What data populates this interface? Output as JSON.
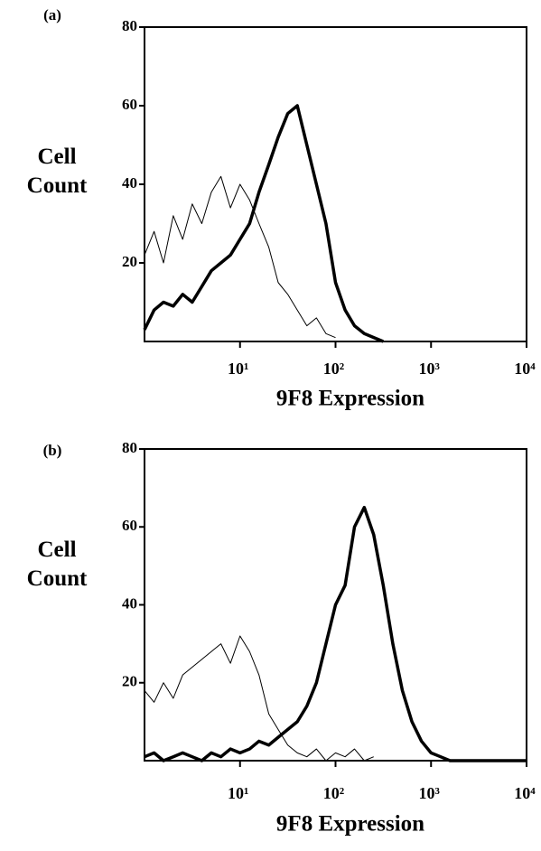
{
  "chart_data": [
    {
      "type": "line",
      "title": "(a)",
      "ylabel": "Cell Count",
      "xlabel": "9F8 Expression",
      "xscale": "log",
      "xlim": [
        1,
        10000
      ],
      "ylim": [
        0,
        80
      ],
      "xticks": [
        {
          "value": 10,
          "label": "10¹"
        },
        {
          "value": 100,
          "label": "10²"
        },
        {
          "value": 1000,
          "label": "10³"
        },
        {
          "value": 10000,
          "label": "10⁴"
        }
      ],
      "yticks": [
        20,
        40,
        60,
        80
      ],
      "x": [
        1,
        1.26,
        1.58,
        2,
        2.51,
        3.16,
        3.98,
        5.01,
        6.31,
        7.94,
        10,
        12.6,
        15.8,
        20,
        25.1,
        31.6,
        39.8,
        50.1,
        63.1,
        79.4,
        100,
        126,
        158,
        200,
        251,
        316,
        398,
        501,
        631,
        794,
        1000,
        1260,
        1580,
        2000,
        2510,
        3160,
        3980,
        5010,
        6310,
        7940,
        10000
      ],
      "series": [
        {
          "color": "#000000",
          "width": 1,
          "values": [
            22,
            28,
            20,
            32,
            26,
            35,
            30,
            38,
            42,
            34,
            40,
            36,
            30,
            24,
            15,
            12,
            8,
            4,
            6,
            2,
            1,
            null,
            null,
            null,
            null,
            null,
            null,
            null,
            null,
            null,
            null,
            null,
            null,
            null,
            null,
            null,
            null,
            null,
            null,
            null,
            null
          ]
        },
        {
          "color": "#000000",
          "width": 3.5,
          "values": [
            3,
            8,
            10,
            9,
            12,
            10,
            14,
            18,
            20,
            22,
            26,
            30,
            38,
            45,
            52,
            58,
            60,
            50,
            40,
            30,
            15,
            8,
            4,
            2,
            1,
            0,
            null,
            null,
            null,
            null,
            null,
            null,
            null,
            null,
            null,
            null,
            null,
            null,
            null,
            null,
            null
          ]
        }
      ]
    },
    {
      "type": "line",
      "title": "(b)",
      "ylabel": "Cell Count",
      "xlabel": "9F8 Expression",
      "xscale": "log",
      "xlim": [
        1,
        10000
      ],
      "ylim": [
        0,
        80
      ],
      "xticks": [
        {
          "value": 10,
          "label": "10¹"
        },
        {
          "value": 100,
          "label": "10²"
        },
        {
          "value": 1000,
          "label": "10³"
        },
        {
          "value": 10000,
          "label": "10⁴"
        }
      ],
      "yticks": [
        20,
        40,
        60,
        80
      ],
      "x": [
        1,
        1.26,
        1.58,
        2,
        2.51,
        3.16,
        3.98,
        5.01,
        6.31,
        7.94,
        10,
        12.6,
        15.8,
        20,
        25.1,
        31.6,
        39.8,
        50.1,
        63.1,
        79.4,
        100,
        126,
        158,
        200,
        251,
        316,
        398,
        501,
        631,
        794,
        1000,
        1260,
        1580,
        2000,
        2510,
        3160,
        3980,
        5010,
        6310,
        7940,
        10000
      ],
      "series": [
        {
          "color": "#000000",
          "width": 1,
          "values": [
            18,
            15,
            20,
            16,
            22,
            24,
            26,
            28,
            30,
            25,
            32,
            28,
            22,
            12,
            8,
            4,
            2,
            1,
            3,
            0,
            2,
            1,
            3,
            0,
            1,
            null,
            null,
            null,
            null,
            null,
            null,
            null,
            null,
            null,
            null,
            null,
            null,
            null,
            null,
            null,
            null
          ]
        },
        {
          "color": "#000000",
          "width": 3.5,
          "values": [
            1,
            2,
            0,
            1,
            2,
            1,
            0,
            2,
            1,
            3,
            2,
            3,
            5,
            4,
            6,
            8,
            10,
            14,
            20,
            30,
            40,
            45,
            60,
            65,
            58,
            45,
            30,
            18,
            10,
            5,
            2,
            1,
            0,
            0,
            0,
            0,
            0,
            0,
            0,
            0,
            0
          ]
        }
      ]
    }
  ]
}
